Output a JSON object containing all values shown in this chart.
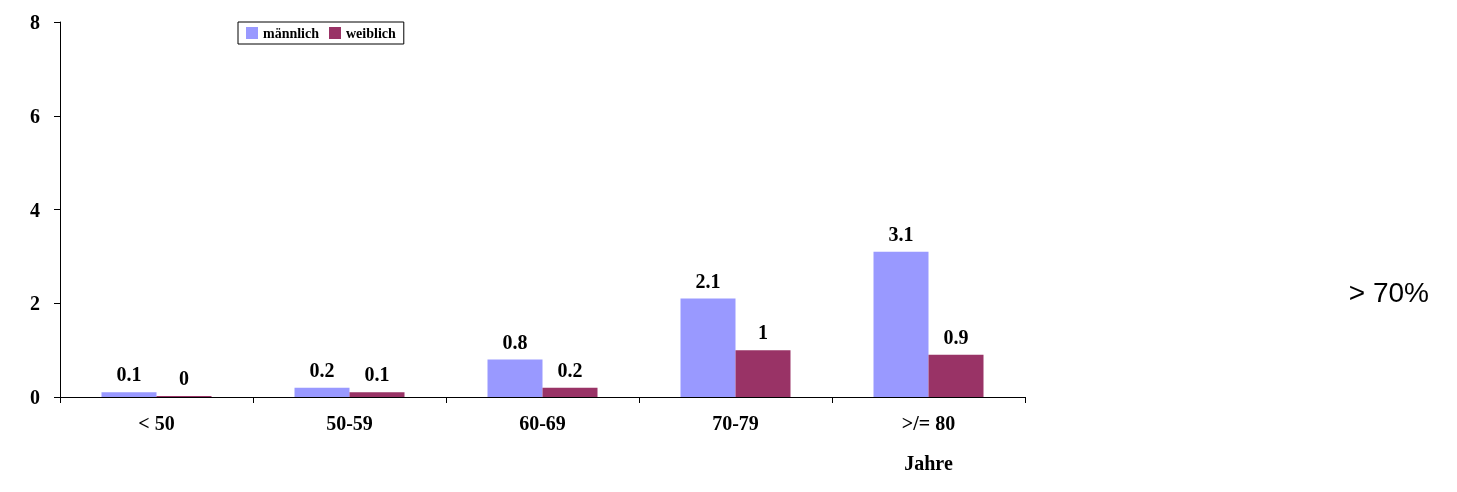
{
  "chart_data": {
    "type": "bar",
    "categories": [
      "< 50",
      "50-59",
      "60-69",
      "70-79",
      ">/= 80"
    ],
    "xlabel": "Jahre",
    "series": [
      {
        "name": "männlich",
        "color": "#9999ff",
        "values": [
          0.1,
          0.2,
          0.8,
          2.1,
          3.1
        ]
      },
      {
        "name": "weiblich",
        "color": "#993366",
        "values": [
          0,
          0.1,
          0.2,
          1,
          0.9
        ]
      }
    ],
    "ylim": [
      0,
      8
    ],
    "yticks": [
      0,
      2,
      4,
      6,
      8
    ],
    "grid": false,
    "legend": "top",
    "data_labels": true,
    "annotations": [
      "> 70%"
    ]
  }
}
